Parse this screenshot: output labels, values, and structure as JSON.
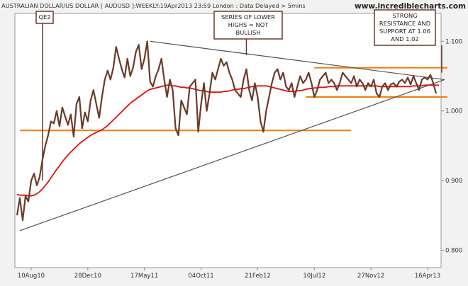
{
  "header": {
    "title": "AUSTRALIAN DOLLAR/US DOLLAR [ AUDUSD ]:WEEKLY:19Apr2013 23:59 London : Data Delayed > 5mins",
    "site": "www.incrediblecharts.com"
  },
  "chart_data": {
    "type": "line",
    "ylim": [
      0.775,
      1.14
    ],
    "y_ticks": [
      0.8,
      0.9,
      1.0,
      1.1
    ],
    "y_tick_labels": [
      "0.800",
      "0.900",
      "1.000",
      "1.100"
    ],
    "x_tick_labels": [
      {
        "label": "10Aug10",
        "index": 5
      },
      {
        "label": "28Dec10",
        "index": 25
      },
      {
        "label": "17May11",
        "index": 45
      },
      {
        "label": "04Oct11",
        "index": 65
      },
      {
        "label": "21Feb12",
        "index": 85
      },
      {
        "label": "10Jul12",
        "index": 105
      },
      {
        "label": "27Nov12",
        "index": 125
      },
      {
        "label": "16Apr13",
        "index": 145
      }
    ],
    "series": [
      {
        "role": "price",
        "color": "#6b3a2a",
        "values": [
          0.85,
          0.875,
          0.843,
          0.878,
          0.87,
          0.9,
          0.91,
          0.893,
          0.905,
          0.93,
          0.95,
          0.965,
          0.985,
          0.982,
          1.0,
          0.978,
          1.005,
          0.992,
          0.98,
          0.995,
          0.963,
          1.01,
          1.02,
          0.975,
          0.998,
          0.985,
          1.015,
          1.03,
          1.01,
          0.99,
          1.02,
          1.045,
          1.058,
          1.045,
          1.062,
          1.092,
          1.075,
          1.06,
          1.048,
          1.075,
          1.05,
          1.062,
          1.085,
          1.095,
          1.06,
          1.075,
          1.1,
          1.042,
          1.035,
          1.05,
          1.06,
          1.075,
          1.045,
          1.02,
          1.045,
          1.03,
          0.975,
          0.965,
          1.015,
          1.005,
          0.995,
          1.035,
          1.04,
          1.045,
          0.97,
          1.01,
          1.04,
          1.0,
          1.025,
          1.055,
          1.045,
          1.06,
          1.075,
          1.065,
          1.07,
          1.055,
          1.045,
          1.03,
          1.025,
          1.02,
          1.045,
          1.06,
          1.03,
          1.015,
          1.04,
          1.02,
          0.985,
          0.97,
          1.0,
          1.02,
          1.04,
          1.055,
          1.06,
          1.045,
          1.055,
          1.035,
          1.03,
          1.04,
          1.02,
          1.035,
          1.05,
          1.04,
          1.045,
          1.055,
          1.04,
          1.02,
          1.03,
          1.045,
          1.05,
          1.055,
          1.04,
          1.045,
          1.04,
          1.03,
          1.04,
          1.055,
          1.05,
          1.045,
          1.04,
          1.05,
          1.035,
          1.045,
          1.04,
          1.03,
          1.04,
          1.035,
          1.045,
          1.025,
          1.02,
          1.035,
          1.04,
          1.03,
          1.038,
          1.04,
          1.035,
          1.042,
          1.045,
          1.04,
          1.048,
          1.038,
          1.05,
          1.04,
          1.03,
          1.045,
          1.048,
          1.045,
          1.052,
          1.04,
          1.025
        ]
      },
      {
        "role": "moving-average",
        "color": "#e01010",
        "values": [
          0.88,
          0.879,
          0.879,
          0.879,
          0.878,
          0.878,
          0.879,
          0.881,
          0.884,
          0.888,
          0.893,
          0.898,
          0.904,
          0.91,
          0.916,
          0.921,
          0.927,
          0.932,
          0.937,
          0.941,
          0.945,
          0.949,
          0.953,
          0.956,
          0.959,
          0.962,
          0.965,
          0.967,
          0.969,
          0.971,
          0.973,
          0.976,
          0.979,
          0.983,
          0.987,
          0.991,
          0.995,
          0.999,
          1.003,
          1.007,
          1.011,
          1.014,
          1.017,
          1.02,
          1.023,
          1.026,
          1.029,
          1.031,
          1.032,
          1.033,
          1.034,
          1.035,
          1.036,
          1.037,
          1.037,
          1.036,
          1.036,
          1.035,
          1.034,
          1.034,
          1.033,
          1.033,
          1.032,
          1.031,
          1.03,
          1.029,
          1.029,
          1.028,
          1.027,
          1.027,
          1.027,
          1.027,
          1.027,
          1.028,
          1.028,
          1.029,
          1.03,
          1.031,
          1.031,
          1.032,
          1.032,
          1.033,
          1.034,
          1.035,
          1.035,
          1.036,
          1.036,
          1.036,
          1.036,
          1.035,
          1.034,
          1.033,
          1.032,
          1.031,
          1.03,
          1.029,
          1.028,
          1.028,
          1.028,
          1.029,
          1.029,
          1.03,
          1.031,
          1.032,
          1.032,
          1.033,
          1.033,
          1.034,
          1.034,
          1.034,
          1.035,
          1.035,
          1.035,
          1.036,
          1.036,
          1.036,
          1.036,
          1.036,
          1.036,
          1.036,
          1.036,
          1.036,
          1.036,
          1.036,
          1.036,
          1.036,
          1.036,
          1.036,
          1.035,
          1.035,
          1.035,
          1.035,
          1.035,
          1.035,
          1.035,
          1.035,
          1.035,
          1.035,
          1.035,
          1.035,
          1.036,
          1.036,
          1.036,
          1.036,
          1.037,
          1.037,
          1.037,
          1.037,
          1.037,
          1.037
        ]
      }
    ],
    "overlays": [
      {
        "name": "resistance-line",
        "color": "#f08010",
        "x": [
          105,
          152
        ],
        "y": [
          1.062,
          1.062
        ]
      },
      {
        "name": "support-line",
        "color": "#f08010",
        "x": [
          102,
          152
        ],
        "y": [
          1.02,
          1.02
        ]
      },
      {
        "name": "horizontal-level-line",
        "color": "#f08010",
        "x": [
          1,
          118
        ],
        "y": [
          0.972,
          0.972
        ]
      },
      {
        "name": "lower-highs-trendline",
        "color": "#505050",
        "x": [
          47,
          151
        ],
        "y": [
          1.1,
          1.045
        ]
      },
      {
        "name": "rising-support-trendline",
        "color": "#505050",
        "x": [
          1,
          151
        ],
        "y": [
          0.828,
          1.045
        ]
      }
    ],
    "annotations": [
      {
        "name": "qe2-annotation",
        "lines": [
          "QE2"
        ],
        "target_index": 9,
        "target_y": 0.9
      },
      {
        "name": "lower-highs-annotation",
        "lines": [
          "SERIES OF LOWER",
          "HIGHS = NOT",
          "BULLISH"
        ],
        "target_index": 81,
        "target_y": 1.08
      },
      {
        "name": "resistance-support-annotation",
        "lines": [
          "STRONG",
          "RESISTANCE AND",
          "SUPPORT AT 1.06",
          "AND 1.02"
        ],
        "target_index": 150,
        "target_y": 1.055
      }
    ],
    "grid": false
  },
  "colors": {
    "background": "#f2f2f2",
    "plot_background": "#ffffff",
    "annotation_border": "#6b3a2a"
  }
}
